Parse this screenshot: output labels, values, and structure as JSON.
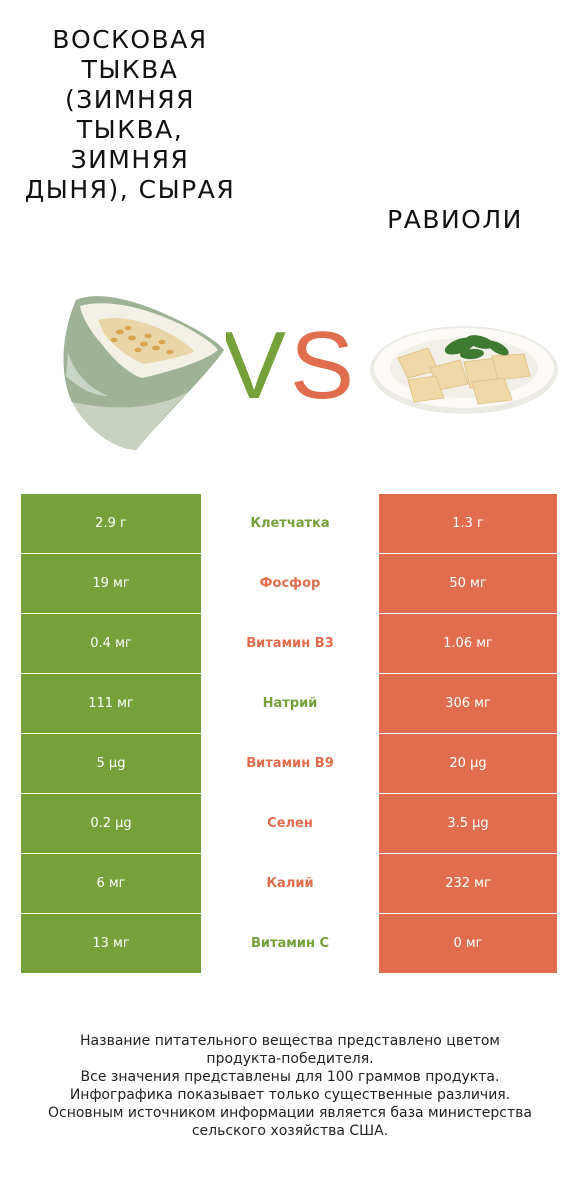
{
  "left_food": {
    "name": "Восковая тыква (зимняя тыква, зимняя дыня), сырая"
  },
  "right_food": {
    "name": "Равиоли"
  },
  "vs_text": {
    "v": "V",
    "s": "S"
  },
  "colors": {
    "left": "#76a03a",
    "right": "#e06d4d"
  },
  "rows": [
    {
      "label": "Клетчатка",
      "left": "2.9 г",
      "right": "1.3 г",
      "winner": "left"
    },
    {
      "label": "Фосфор",
      "left": "19 мг",
      "right": "50 мг",
      "winner": "right"
    },
    {
      "label": "Витамин B3",
      "left": "0.4 мг",
      "right": "1.06 мг",
      "winner": "right"
    },
    {
      "label": "Натрий",
      "left": "111 мг",
      "right": "306 мг",
      "winner": "left"
    },
    {
      "label": "Витамин B9",
      "left": "5 µg",
      "right": "20 µg",
      "winner": "right"
    },
    {
      "label": "Селен",
      "left": "0.2 µg",
      "right": "3.5 µg",
      "winner": "right"
    },
    {
      "label": "Калий",
      "left": "6 мг",
      "right": "232 мг",
      "winner": "right"
    },
    {
      "label": "Витамин C",
      "left": "13 мг",
      "right": "0 мг",
      "winner": "left"
    }
  ],
  "footer": {
    "line1": "Название питательного вещества представлено цветом",
    "line2": "продукта-победителя.",
    "line3": "Все значения представлены для 100 граммов продукта.",
    "line4": "Инфографика показывает только существенные различия.",
    "line5": "Основным источником информации является база министерства",
    "line6": "сельского хозяйства США."
  }
}
